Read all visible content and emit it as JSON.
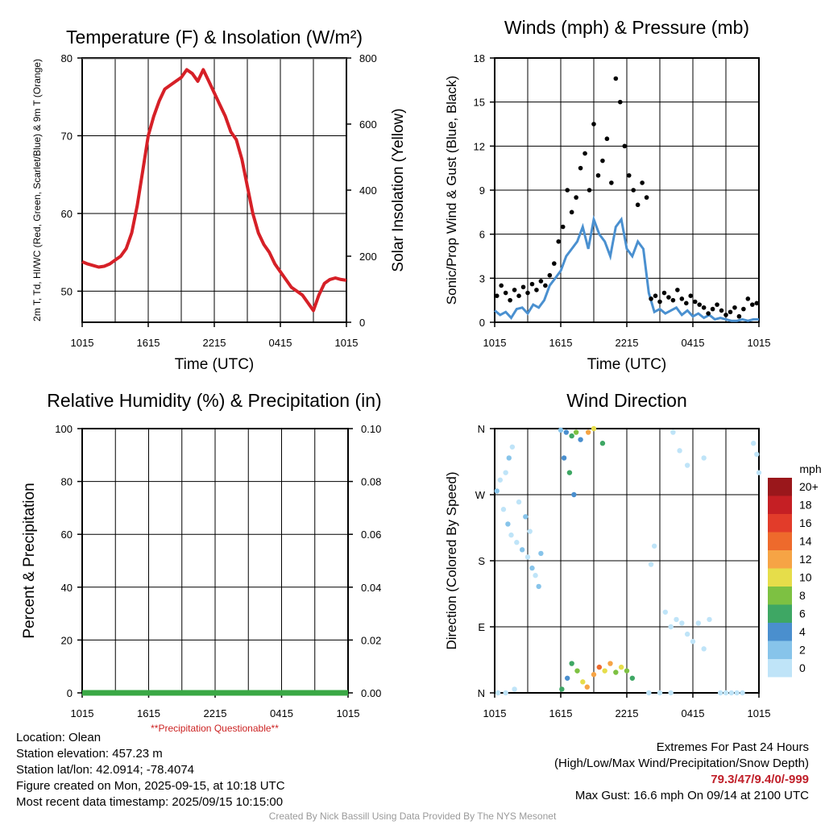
{
  "chart_data": [
    {
      "type": "line",
      "title": "Temperature (F) & Insolation (W/m²)",
      "xlabel": "Time (UTC)",
      "ylabel": "2m T, Td, HI/WC (Red, Green, Scarlet/Blue) & 9m T (Orange)",
      "ylabel_right": "Solar Insolation (Yellow)",
      "x_ticks": [
        "1015",
        "1615",
        "2215",
        "0415",
        "1015"
      ],
      "y_ticks": [
        "50",
        "60",
        "70",
        "80"
      ],
      "y_ticks_right": [
        "0",
        "200",
        "400",
        "600",
        "800"
      ],
      "ylim": [
        46,
        80
      ],
      "ylim_right": [
        0,
        800
      ],
      "xlim": [
        0,
        24
      ],
      "grid": true,
      "series": [
        {
          "color": "#d62027",
          "x": [
            0,
            0.5,
            1,
            1.5,
            2,
            2.5,
            3,
            3.5,
            4,
            4.5,
            5,
            5.5,
            6,
            6.5,
            7,
            7.5,
            8,
            8.5,
            9,
            9.5,
            10,
            10.5,
            11,
            11.5,
            12,
            12.5,
            13,
            13.5,
            14,
            14.5,
            15,
            15.5,
            16,
            16.5,
            17,
            17.5,
            18,
            18.5,
            19,
            19.5,
            20,
            20.5,
            21,
            21.5,
            22,
            22.5,
            23,
            23.5,
            24
          ],
          "values": [
            53.8,
            53.5,
            53.3,
            53.1,
            53.2,
            53.5,
            54.0,
            54.5,
            55.5,
            57.5,
            61.0,
            65.5,
            70.0,
            72.5,
            74.5,
            76.0,
            76.5,
            77.0,
            77.5,
            78.5,
            78.0,
            77.0,
            78.5,
            77.0,
            75.5,
            74.0,
            72.5,
            70.5,
            69.5,
            67.0,
            63.5,
            60.0,
            57.5,
            56.0,
            55.0,
            53.5,
            52.5,
            51.5,
            50.5,
            50.0,
            49.5,
            48.5,
            47.5,
            49.5,
            51.0,
            51.5,
            51.7,
            51.5,
            51.4
          ]
        }
      ]
    },
    {
      "type": "scatter",
      "title": "Winds (mph) & Pressure (mb)",
      "xlabel": "Time (UTC)",
      "ylabel": "Sonic/Prop Wind & Gust (Blue, Black)",
      "x_ticks": [
        "1015",
        "1615",
        "2215",
        "0415",
        "1015"
      ],
      "y_ticks": [
        "0",
        "3",
        "6",
        "9",
        "12",
        "15",
        "18"
      ],
      "ylim": [
        0,
        18
      ],
      "xlim": [
        0,
        24
      ],
      "grid": true,
      "series": [
        {
          "color": "#4a90d0",
          "style": "line",
          "x": [
            0,
            0.5,
            1,
            1.5,
            2,
            2.5,
            3,
            3.5,
            4,
            4.5,
            5,
            5.5,
            6,
            6.5,
            7,
            7.5,
            8,
            8.5,
            9,
            9.5,
            10,
            10.5,
            11,
            11.5,
            12,
            12.5,
            13,
            13.5,
            14,
            14.5,
            15,
            15.5,
            16,
            16.5,
            17,
            17.5,
            18,
            18.5,
            19,
            19.5,
            20,
            20.5,
            21,
            21.5,
            22,
            22.5,
            23,
            23.5,
            24
          ],
          "values": [
            0.8,
            0.5,
            0.7,
            0.3,
            0.9,
            1.0,
            0.6,
            1.2,
            1.0,
            1.5,
            2.5,
            3.0,
            3.5,
            4.5,
            5.0,
            5.5,
            6.5,
            5.0,
            7.0,
            6.0,
            5.5,
            4.5,
            6.5,
            7.0,
            5.0,
            4.5,
            5.5,
            5.0,
            2.0,
            0.7,
            0.9,
            0.6,
            0.8,
            1.0,
            0.5,
            0.8,
            0.4,
            0.6,
            0.3,
            0.5,
            0.2,
            0.3,
            0.2,
            0.1,
            0.1,
            0.2,
            0.1,
            0.2,
            0.2
          ]
        },
        {
          "color": "#000000",
          "style": "points",
          "x": [
            0.2,
            0.6,
            1.0,
            1.4,
            1.8,
            2.2,
            2.6,
            3.0,
            3.4,
            3.8,
            4.2,
            4.6,
            5.0,
            5.4,
            5.8,
            6.2,
            6.6,
            7.0,
            7.4,
            7.8,
            8.2,
            8.6,
            9.0,
            9.4,
            9.8,
            10.2,
            10.6,
            11.0,
            11.4,
            11.8,
            12.2,
            12.6,
            13.0,
            13.4,
            13.8,
            14.2,
            14.6,
            15.0,
            15.4,
            15.8,
            16.2,
            16.6,
            17.0,
            17.4,
            17.8,
            18.2,
            18.6,
            19.0,
            19.4,
            19.8,
            20.2,
            20.6,
            21.0,
            21.4,
            21.8,
            22.2,
            22.6,
            23.0,
            23.4,
            23.8
          ],
          "values": [
            1.8,
            2.5,
            2.0,
            1.5,
            2.2,
            1.8,
            2.4,
            2.0,
            2.6,
            2.2,
            2.8,
            2.5,
            3.2,
            4.0,
            5.5,
            6.5,
            9.0,
            7.5,
            8.5,
            10.5,
            11.5,
            9.0,
            13.5,
            10.0,
            11.0,
            12.5,
            9.5,
            16.6,
            15.0,
            12.0,
            10.0,
            9.0,
            8.0,
            9.5,
            8.5,
            1.6,
            1.8,
            1.4,
            2.0,
            1.7,
            1.5,
            2.2,
            1.6,
            1.3,
            1.8,
            1.4,
            1.2,
            1.0,
            0.6,
            0.9,
            1.2,
            0.8,
            0.5,
            0.7,
            1.0,
            0.4,
            0.9,
            1.6,
            1.2,
            1.3
          ]
        }
      ]
    },
    {
      "type": "line",
      "title": "Relative Humidity (%) & Precipitation (in)",
      "xlabel": "",
      "ylabel": "Percent & Precipitation",
      "x_ticks": [
        "1015",
        "1615",
        "2215",
        "0415",
        "1015"
      ],
      "y_ticks": [
        "0",
        "20",
        "40",
        "60",
        "80",
        "100"
      ],
      "y_ticks_right": [
        "0.00",
        "0.02",
        "0.04",
        "0.06",
        "0.08",
        "0.10"
      ],
      "ylim": [
        0,
        100
      ],
      "ylim_right": [
        0,
        0.1
      ],
      "xlim": [
        0,
        24
      ],
      "grid": true,
      "series": [
        {
          "color": "#3aa845",
          "x": [
            0,
            24
          ],
          "values": [
            0,
            0
          ]
        }
      ],
      "annotation": "**Precipitation Questionable**"
    },
    {
      "type": "scatter",
      "title": "Wind Direction",
      "xlabel": "",
      "ylabel": "Direction (Colored By Speed)",
      "x_ticks": [
        "1015",
        "1615",
        "2215",
        "0415",
        "1015"
      ],
      "y_ticks": [
        "N",
        "E",
        "S",
        "W",
        "N"
      ],
      "ylim": [
        0,
        360
      ],
      "xlim": [
        0,
        24
      ],
      "grid": true,
      "colorbar": {
        "unit": "mph",
        "labels": [
          "0",
          "2",
          "4",
          "6",
          "8",
          "10",
          "12",
          "14",
          "16",
          "18",
          "20+"
        ],
        "colors": [
          "#bfe4f8",
          "#87c4ea",
          "#4a8fce",
          "#3ea764",
          "#7dc142",
          "#e6dd4a",
          "#f6a445",
          "#ee6a2c",
          "#e23c2a",
          "#c51f24",
          "#9a171b"
        ]
      },
      "points": [
        [
          0.3,
          0,
          0
        ],
        [
          1.0,
          0,
          0
        ],
        [
          1.8,
          5,
          0
        ],
        [
          0.2,
          275,
          1
        ],
        [
          0.5,
          290,
          0
        ],
        [
          1.0,
          300,
          0
        ],
        [
          1.3,
          320,
          1
        ],
        [
          1.6,
          335,
          0
        ],
        [
          0.8,
          250,
          0
        ],
        [
          1.2,
          230,
          1
        ],
        [
          1.5,
          215,
          0
        ],
        [
          2.0,
          205,
          0
        ],
        [
          2.5,
          195,
          1
        ],
        [
          3.0,
          185,
          0
        ],
        [
          3.4,
          170,
          1
        ],
        [
          3.7,
          160,
          0
        ],
        [
          4.0,
          145,
          1
        ],
        [
          2.2,
          260,
          0
        ],
        [
          2.8,
          240,
          1
        ],
        [
          3.2,
          220,
          0
        ],
        [
          4.2,
          190,
          1
        ],
        [
          6.0,
          358,
          1
        ],
        [
          6.5,
          355,
          2
        ],
        [
          7.0,
          350,
          3
        ],
        [
          7.4,
          355,
          4
        ],
        [
          7.8,
          345,
          2
        ],
        [
          6.3,
          320,
          2
        ],
        [
          6.8,
          300,
          3
        ],
        [
          7.2,
          270,
          2
        ],
        [
          6.1,
          5,
          3
        ],
        [
          6.6,
          20,
          2
        ],
        [
          7.0,
          40,
          3
        ],
        [
          7.5,
          30,
          4
        ],
        [
          8.0,
          15,
          5
        ],
        [
          8.4,
          8,
          6
        ],
        [
          9.0,
          25,
          6
        ],
        [
          9.5,
          35,
          7
        ],
        [
          10.0,
          30,
          5
        ],
        [
          10.5,
          40,
          6
        ],
        [
          11.0,
          28,
          4
        ],
        [
          11.5,
          35,
          5
        ],
        [
          12.0,
          30,
          4
        ],
        [
          12.5,
          20,
          3
        ],
        [
          8.5,
          355,
          6
        ],
        [
          9.0,
          360,
          5
        ],
        [
          9.8,
          340,
          3
        ],
        [
          14.0,
          0,
          0
        ],
        [
          15.0,
          0,
          0
        ],
        [
          16.0,
          0,
          0
        ],
        [
          14.5,
          200,
          0
        ],
        [
          14.2,
          175,
          0
        ],
        [
          15.5,
          110,
          0
        ],
        [
          16.0,
          90,
          0
        ],
        [
          16.5,
          100,
          0
        ],
        [
          17.0,
          95,
          0
        ],
        [
          17.5,
          80,
          0
        ],
        [
          18.0,
          70,
          0
        ],
        [
          18.5,
          95,
          0
        ],
        [
          19.0,
          60,
          0
        ],
        [
          19.5,
          100,
          0
        ],
        [
          16.2,
          355,
          0
        ],
        [
          16.8,
          330,
          0
        ],
        [
          17.5,
          310,
          0
        ],
        [
          19.0,
          320,
          0
        ],
        [
          20.5,
          0,
          0
        ],
        [
          21.0,
          0,
          0
        ],
        [
          21.5,
          0,
          0
        ],
        [
          22.0,
          0,
          0
        ],
        [
          22.5,
          0,
          0
        ],
        [
          23.5,
          340,
          0
        ],
        [
          23.8,
          325,
          0
        ],
        [
          24.0,
          300,
          0
        ]
      ]
    }
  ],
  "meta": {
    "location": "Location: Olean",
    "elevation": "Station elevation: 457.23 m",
    "latlon": "Station lat/lon: 42.0914; -78.4074",
    "created": "Figure created on Mon, 2025-09-15, at 10:18 UTC",
    "recent": "Most recent data timestamp: 2025/09/15 10:15:00"
  },
  "extremes": {
    "title": "Extremes For Past 24 Hours",
    "subtitle": "(High/Low/Max Wind/Precipitation/Snow Depth)",
    "values": "79.3/47/9.4/0/-999",
    "gust": "Max Gust: 16.6 mph On 09/14 at 2100 UTC"
  },
  "credit": "Created By Nick Bassill Using Data Provided By The NYS Mesonet"
}
